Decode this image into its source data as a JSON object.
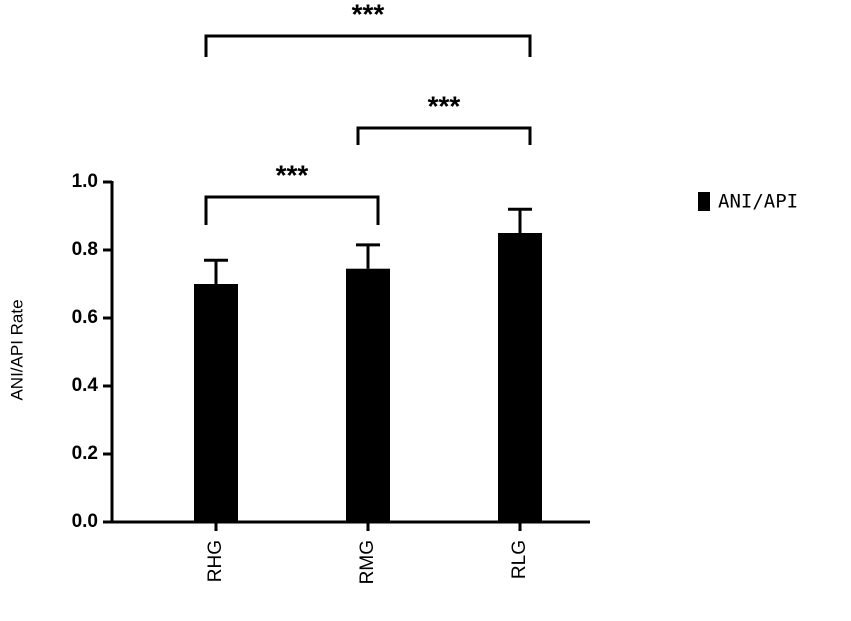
{
  "chart_data": {
    "type": "bar",
    "y_label": "ANI/API Rate",
    "categories": [
      "RHG",
      "RMG",
      "RLG"
    ],
    "series": [
      {
        "name": "ANI/API",
        "color": "#000000",
        "values": [
          0.7,
          0.745,
          0.85
        ],
        "errors": [
          0.07,
          0.07,
          0.07
        ]
      }
    ],
    "ylim": [
      0,
      1.0
    ],
    "yticks": [
      {
        "value": 0,
        "label": "0.0"
      },
      {
        "value": 0.2,
        "label": "0.2"
      },
      {
        "value": 0.4,
        "label": "0.4"
      },
      {
        "value": 0.6,
        "label": "0.6"
      },
      {
        "value": 0.8,
        "label": "0.8"
      },
      {
        "value": 1.0,
        "label": "1.0"
      }
    ],
    "significance": [
      {
        "from": "RHG",
        "to": "RMG",
        "label": "***"
      },
      {
        "from": "RMG",
        "to": "RLG",
        "label": "***"
      },
      {
        "from": "RHG",
        "to": "RLG",
        "label": "***"
      }
    ]
  }
}
